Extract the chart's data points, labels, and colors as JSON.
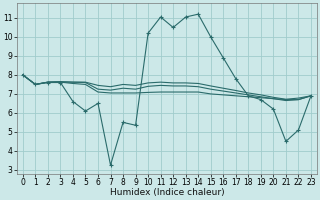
{
  "xlabel": "Humidex (Indice chaleur)",
  "xlim": [
    -0.5,
    23.5
  ],
  "ylim": [
    2.8,
    11.8
  ],
  "yticks": [
    3,
    4,
    5,
    6,
    7,
    8,
    9,
    10,
    11
  ],
  "xticks": [
    0,
    1,
    2,
    3,
    4,
    5,
    6,
    7,
    8,
    9,
    10,
    11,
    12,
    13,
    14,
    15,
    16,
    17,
    18,
    19,
    20,
    21,
    22,
    23
  ],
  "background_color": "#cce8e8",
  "grid_color": "#a0cccc",
  "line_color": "#2a6b6b",
  "line1_x": [
    0,
    1,
    2,
    3,
    4,
    5,
    6,
    7,
    8,
    9,
    10,
    11,
    12,
    13,
    14,
    15,
    16,
    17,
    18,
    19,
    20,
    21,
    22,
    23
  ],
  "line1_y": [
    8.0,
    7.5,
    7.6,
    7.6,
    6.6,
    6.1,
    6.5,
    3.25,
    5.5,
    5.35,
    10.2,
    11.05,
    10.5,
    11.05,
    11.2,
    10.0,
    8.9,
    7.8,
    6.9,
    6.7,
    6.2,
    4.5,
    5.1,
    6.9
  ],
  "line2_x": [
    0,
    1,
    2,
    3,
    4,
    5,
    6,
    7,
    8,
    9,
    10,
    11,
    12,
    13,
    14,
    15,
    16,
    17,
    18,
    19,
    20,
    21,
    22,
    23
  ],
  "line2_y": [
    8.0,
    7.5,
    7.62,
    7.62,
    7.55,
    7.5,
    7.1,
    7.05,
    7.05,
    7.05,
    7.08,
    7.1,
    7.1,
    7.1,
    7.1,
    7.0,
    6.95,
    6.9,
    6.85,
    6.8,
    6.75,
    6.7,
    6.7,
    6.9
  ],
  "line3_x": [
    0,
    1,
    2,
    3,
    4,
    5,
    6,
    7,
    8,
    9,
    10,
    11,
    12,
    13,
    14,
    15,
    16,
    17,
    18,
    19,
    20,
    21,
    22,
    23
  ],
  "line3_y": [
    8.0,
    7.5,
    7.62,
    7.64,
    7.62,
    7.6,
    7.25,
    7.2,
    7.3,
    7.25,
    7.4,
    7.45,
    7.42,
    7.42,
    7.38,
    7.25,
    7.15,
    7.05,
    6.95,
    6.85,
    6.75,
    6.65,
    6.7,
    6.9
  ],
  "line4_x": [
    0,
    1,
    2,
    3,
    4,
    5,
    6,
    7,
    8,
    9,
    10,
    11,
    12,
    13,
    14,
    15,
    16,
    17,
    18,
    19,
    20,
    21,
    22,
    23
  ],
  "line4_y": [
    8.0,
    7.5,
    7.62,
    7.64,
    7.62,
    7.62,
    7.45,
    7.38,
    7.5,
    7.45,
    7.58,
    7.62,
    7.58,
    7.58,
    7.55,
    7.42,
    7.3,
    7.18,
    7.05,
    6.95,
    6.82,
    6.72,
    6.78,
    6.9
  ]
}
